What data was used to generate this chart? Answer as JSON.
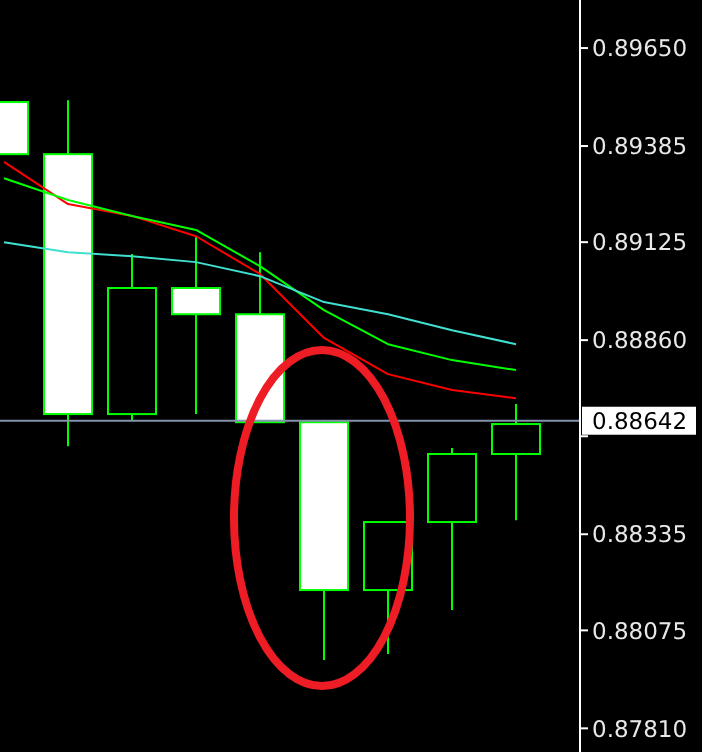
{
  "chart_data": {
    "type": "candlestick",
    "categories": [
      null,
      null,
      null,
      null,
      null,
      null,
      null,
      null,
      null
    ],
    "color": "#00ff00",
    "ohlc": [
      [
        0.89504,
        0.89504,
        0.89363,
        0.89363
      ],
      [
        0.89363,
        0.89509,
        0.88573,
        0.8866
      ],
      [
        0.8866,
        0.89093,
        0.88644,
        0.89001
      ],
      [
        0.89001,
        0.89141,
        0.8866,
        0.8893
      ],
      [
        0.8893,
        0.89098,
        0.88638,
        0.88638
      ],
      [
        0.88638,
        0.88644,
        0.87995,
        0.88184
      ],
      [
        0.88184,
        0.88368,
        0.88011,
        0.88368
      ],
      [
        0.88368,
        0.88568,
        0.8813,
        0.88552
      ],
      [
        0.88552,
        0.88687,
        0.88373,
        0.88633
      ]
    ],
    "series": [
      {
        "type": "line",
        "color": "#ff0000",
        "values": [
          0.89342,
          0.89228,
          0.89196,
          0.89141,
          0.89039,
          0.88866,
          0.88768,
          0.88725,
          0.88703
        ]
      },
      {
        "type": "line",
        "color": "#00ff00",
        "values": [
          0.89298,
          0.89239,
          0.89196,
          0.89158,
          0.8906,
          0.88941,
          0.88849,
          0.88806,
          0.88779
        ]
      },
      {
        "type": "line",
        "color": "#40e0d0",
        "values": [
          0.89125,
          0.89098,
          0.89087,
          0.89071,
          0.89033,
          0.88963,
          0.8893,
          0.88887,
          0.88849
        ]
      }
    ],
    "ylim": [
      0.87746,
      0.8978
    ],
    "yticks": [
      {
        "value": 0.8965,
        "label": "0.89650"
      },
      {
        "value": 0.89385,
        "label": "0.89385"
      },
      {
        "value": 0.89125,
        "label": "0.89125"
      },
      {
        "value": 0.8886,
        "label": "0.88860"
      },
      {
        "value": 0.886,
        "label": null
      },
      {
        "value": 0.88335,
        "label": "0.88335"
      },
      {
        "value": 0.88075,
        "label": "0.88075"
      },
      {
        "value": 0.8781,
        "label": "0.87810"
      }
    ],
    "ref_lines": [
      {
        "axis": "y",
        "value": 0.88642,
        "label": "0.88642",
        "color": "#8494ac"
      }
    ],
    "tick_labels": "y"
  }
}
